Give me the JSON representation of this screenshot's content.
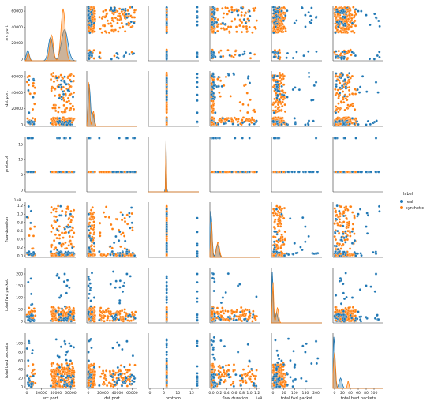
{
  "chart_data": {
    "type": "scatter",
    "subtype": "pairplot",
    "variables": [
      "src port",
      "dst port",
      "protocol",
      "flow duration",
      "total fwd packet",
      "total bwd packets"
    ],
    "axis_ranges": {
      "src port": [
        0,
        65000
      ],
      "dst port": [
        0,
        65000
      ],
      "protocol": [
        0,
        17
      ],
      "flow duration": [
        0,
        1.25
      ],
      "total fwd packet": [
        0,
        220
      ],
      "total bwd packets": [
        0,
        120
      ]
    },
    "ticks": {
      "src port": [
        "0",
        "20000",
        "40000",
        "60000"
      ],
      "dst port": [
        "0",
        "20000",
        "40000",
        "60000"
      ],
      "protocol": [
        "0",
        "5",
        "10",
        "15"
      ],
      "flow duration": [
        "0.0",
        "0.2",
        "0.4",
        "0.6",
        "0.8",
        "1.0",
        "1.2"
      ],
      "total fwd packet": [
        "0",
        "50",
        "100",
        "150",
        "200"
      ],
      "total bwd packets": [
        "0",
        "20",
        "40",
        "60",
        "80",
        "100"
      ]
    },
    "flow_duration_exponent": "1e8",
    "legend": {
      "title": "label",
      "entries": [
        "real",
        "synthetic"
      ],
      "position": "right-center"
    },
    "series_colors": {
      "real": "#1f77b4",
      "synthetic": "#ff7f0e"
    },
    "series": [
      {
        "name": "real",
        "points": [
          {
            "src port": 3000,
            "dst port": 15000,
            "protocol": 17,
            "flow duration": 0.1,
            "total fwd packet": 5,
            "total bwd packets": 3
          },
          {
            "src port": 33000,
            "dst port": 2000,
            "protocol": 6,
            "flow duration": 0.1,
            "total fwd packet": 3,
            "total bwd packets": 2
          },
          {
            "src port": 52000,
            "dst port": 53000,
            "protocol": 17,
            "flow duration": 0.05,
            "total fwd packet": 200,
            "total bwd packets": 105
          },
          {
            "src port": 60000,
            "dst port": 443,
            "protocol": 6,
            "flow duration": 1.0,
            "total fwd packet": 40,
            "total bwd packets": 60
          },
          {
            "src port": 45000,
            "dst port": 8000,
            "protocol": 6,
            "flow duration": 0.3,
            "total fwd packet": 100,
            "total bwd packets": 45
          },
          {
            "src port": 55000,
            "dst port": 80,
            "protocol": 6,
            "flow duration": 0.7,
            "total fwd packet": 150,
            "total bwd packets": 80
          }
        ]
      },
      {
        "name": "synthetic",
        "points": [
          {
            "src port": 40000,
            "dst port": 500,
            "protocol": 6,
            "flow duration": 0.01,
            "total fwd packet": 4,
            "total bwd packets": 3
          },
          {
            "src port": 50000,
            "dst port": 9000,
            "protocol": 6,
            "flow duration": 0.02,
            "total fwd packet": 25,
            "total bwd packets": 35
          },
          {
            "src port": 58000,
            "dst port": 50000,
            "protocol": 6,
            "flow duration": 0.9,
            "total fwd packet": 50,
            "total bwd packets": 30
          },
          {
            "src port": 35000,
            "dst port": 1000,
            "protocol": 6,
            "flow duration": 0.05,
            "total fwd packet": 10,
            "total bwd packets": 15
          },
          {
            "src port": 62000,
            "dst port": 3000,
            "protocol": 6,
            "flow duration": 0.02,
            "total fwd packet": 30,
            "total bwd packets": 33
          }
        ]
      }
    ],
    "diagonal": "kde",
    "grid": false
  }
}
